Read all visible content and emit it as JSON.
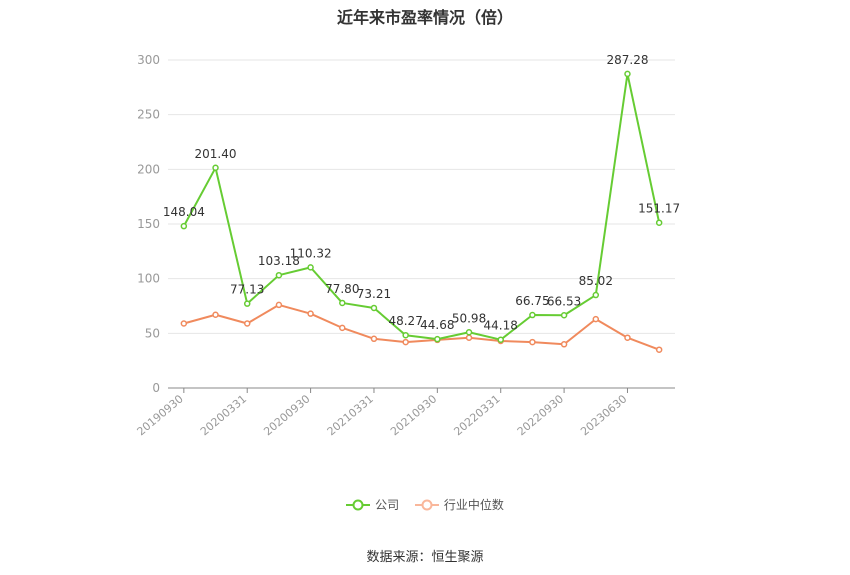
{
  "chart_data": {
    "type": "line",
    "title": "近年来市盈率情况（倍）",
    "xlabel": "",
    "ylabel": "",
    "ylim": [
      0,
      300
    ],
    "yticks": [
      0,
      50,
      100,
      150,
      200,
      250,
      300
    ],
    "x": [
      "20190930",
      "20191231",
      "20200331",
      "20200630",
      "20200930",
      "20201231",
      "20210331",
      "20210630",
      "20210930",
      "20211231",
      "20220331",
      "20220630",
      "20220930",
      "20221231",
      "20230630",
      "20230930"
    ],
    "x_tick_labels": [
      "20190930",
      "20200331",
      "20200930",
      "20210331",
      "20210930",
      "20220331",
      "20220930",
      "20230630"
    ],
    "series": [
      {
        "name": "公司",
        "color": "#66cc33",
        "values": [
          148.04,
          201.4,
          77.13,
          103.18,
          110.32,
          77.8,
          73.21,
          48.27,
          44.68,
          50.98,
          44.18,
          66.75,
          66.53,
          85.02,
          287.28,
          151.17
        ],
        "labels": [
          "148.04",
          "201.40",
          "77.13",
          "103.18",
          "110.32",
          "77.80",
          "73.21",
          "48.27",
          "44.68",
          "50.98",
          "44.18",
          "66.75",
          "66.53",
          "85.02",
          "287.28",
          "151.17"
        ]
      },
      {
        "name": "行业中位数",
        "color": "#f08a5d",
        "values": [
          59,
          67,
          59,
          76,
          68,
          55,
          45,
          42,
          44,
          46,
          43,
          42,
          40,
          63,
          46,
          35
        ]
      }
    ],
    "grid": true,
    "legend_position": "bottom"
  },
  "legend": {
    "company": "公司",
    "industry": "行业中位数"
  },
  "source": "数据来源：恒生聚源"
}
